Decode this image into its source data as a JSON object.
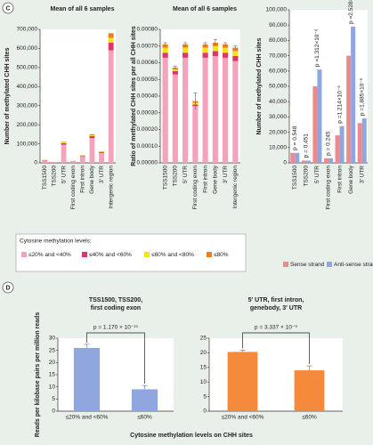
{
  "panel_labels": [
    "C",
    "D"
  ],
  "chart_data": [
    {
      "type": "stacked_bar",
      "title": "Mean of all 6 samples",
      "ylabel": "Number of methylated CHH sites",
      "categories": [
        "TSS1500",
        "TSS200",
        "5′ UTR",
        "First coding exon",
        "First intron",
        "Gene body",
        "3′ UTR",
        "Intergenic region"
      ],
      "legend_title": "Cytosine methylation levels:",
      "series": [
        {
          "name": "≤20% and <40%",
          "color": "#f4a3bd",
          "values": [
            10000,
            3500,
            95000,
            7000,
            34000,
            130000,
            52000,
            590000
          ]
        },
        {
          "name": "≤40% and <60%",
          "color": "#e0336a",
          "values": [
            2000,
            700,
            8000,
            1500,
            3000,
            10000,
            4000,
            40000
          ]
        },
        {
          "name": "≤60% and <80%",
          "color": "#f3e21c",
          "values": [
            1500,
            400,
            4000,
            800,
            1500,
            5000,
            2000,
            25000
          ]
        },
        {
          "name": "≤80%",
          "color": "#f07d1e",
          "values": [
            1500,
            400,
            3000,
            700,
            1500,
            5000,
            2000,
            25000
          ]
        }
      ],
      "ylim": [
        0,
        700000
      ],
      "yticks": [
        0,
        {
          "value": 100000,
          "label": "100,000"
        },
        {
          "value": 200000,
          "label": "200,000"
        },
        {
          "value": 300000,
          "label": "300,000"
        },
        {
          "value": 400000,
          "label": "400,000"
        },
        {
          "value": 500000,
          "label": "500,000"
        },
        {
          "value": 600000,
          "label": "600,000"
        },
        {
          "value": 700000,
          "label": "700,000"
        }
      ]
    },
    {
      "type": "stacked_bar",
      "title": "Mean of all 6 samples",
      "ylabel": "Ratio of methylated CHH sites per all CHH sites",
      "categories": [
        "TSS1500",
        "TSS200",
        "5′ UTR",
        "First coding exon",
        "First intron",
        "Gene body",
        "3′ UTR",
        "Intergenic region"
      ],
      "series": [
        {
          "color": "#f4a3bd",
          "values": [
            0.00063,
            0.00053,
            0.00063,
            0.00034,
            0.00063,
            0.00064,
            0.00063,
            0.00061
          ]
        },
        {
          "color": "#e0336a",
          "values": [
            3e-05,
            2e-05,
            3e-05,
            1e-05,
            3e-05,
            3e-05,
            3e-05,
            3e-05
          ]
        },
        {
          "color": "#f3e21c",
          "values": [
            3e-05,
            1e-05,
            3e-05,
            1e-05,
            3e-05,
            3e-05,
            3e-05,
            3e-05
          ]
        },
        {
          "color": "#f07d1e",
          "values": [
            2e-05,
            1e-05,
            2e-05,
            1e-05,
            2e-05,
            2e-05,
            2e-05,
            2e-05
          ]
        }
      ],
      "errors": [
        1e-05,
        1e-05,
        1e-05,
        5e-05,
        1e-05,
        2e-05,
        1e-05,
        1e-05
      ],
      "ylim": [
        0,
        0.0008
      ],
      "yticks": [
        {
          "value": 0,
          "label": "0.00000"
        },
        {
          "value": 0.0001,
          "label": "0.00010"
        },
        {
          "value": 0.0002,
          "label": "0.00020"
        },
        {
          "value": 0.0003,
          "label": "0.00030"
        },
        {
          "value": 0.0004,
          "label": "0.00040"
        },
        {
          "value": 0.0005,
          "label": "0.00050"
        },
        {
          "value": 0.0006,
          "label": "0.00060"
        },
        {
          "value": 0.0007,
          "label": "0.00070"
        },
        {
          "value": 0.0008,
          "label": "0.00080"
        }
      ]
    },
    {
      "type": "grouped_bar",
      "ylabel": "Number of methylated CHH sites",
      "categories": [
        "TSS1500",
        "TSS200",
        "5′ UTR",
        "First coding exon",
        "First intron",
        "Gene body",
        "3′ UTR"
      ],
      "series": [
        {
          "name": "Sense strand",
          "color": "#ef8a8c",
          "values": [
            6500,
            1500,
            50000,
            3000,
            18000,
            70000,
            26000
          ]
        },
        {
          "name": "Anti-sense strand",
          "color": "#8fa6de",
          "values": [
            6500,
            1500,
            61000,
            3000,
            24000,
            89000,
            29000
          ]
        }
      ],
      "pvalues": [
        "p = 0.548",
        "p = 0.451",
        "p =1.312×10⁻⁶",
        "p = 0.245",
        "p =1.214×10⁻⁶",
        "p =2.528×10⁻⁶",
        "p =1.885×10⁻⁶"
      ],
      "ylim": [
        0,
        100000
      ],
      "yticks": [
        0,
        {
          "value": 10000,
          "label": "10,000"
        },
        {
          "value": 20000,
          "label": "20,000"
        },
        {
          "value": 30000,
          "label": "30,000"
        },
        {
          "value": 40000,
          "label": "40,000"
        },
        {
          "value": 50000,
          "label": "50,000"
        },
        {
          "value": 60000,
          "label": "60,000"
        },
        {
          "value": 70000,
          "label": "70,000"
        },
        {
          "value": 80000,
          "label": "80,000"
        },
        {
          "value": 90000,
          "label": "90,000"
        },
        {
          "value": 100000,
          "label": "100,000"
        }
      ]
    },
    {
      "type": "bar",
      "title": [
        "TSS1500, TSS200,",
        "first coding exon"
      ],
      "ylabel": "Reads per kilobase pairs per million reads",
      "xlabel": "Cytosine methylation levels on CHH sites",
      "categories": [
        "≤20% and <60%",
        "≤60%"
      ],
      "values": [
        26,
        9
      ],
      "errors": [
        1.5,
        1.5
      ],
      "color": "#8fa6de",
      "annotation": "p = 1.170 × 10⁻¹⁵",
      "ylim": [
        0,
        30
      ],
      "yticks": [
        0,
        5,
        10,
        15,
        20,
        25,
        30
      ]
    },
    {
      "type": "bar",
      "title": [
        "5′ UTR, first intron,",
        "genebody, 3′ UTR"
      ],
      "categories": [
        "≤20% and <60%",
        "≤60%"
      ],
      "values": [
        20.3,
        14
      ],
      "errors": [
        0.6,
        1.5
      ],
      "color": "#f58a3c",
      "annotation": "p = 3.337 × 10⁻⁹",
      "ylim": [
        0,
        25
      ],
      "yticks": [
        0,
        5,
        10,
        15,
        20,
        25
      ]
    }
  ]
}
